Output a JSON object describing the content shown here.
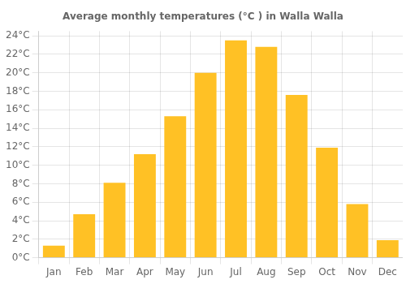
{
  "chart_data": {
    "type": "bar",
    "title": "Average monthly temperatures (°C ) in Walla Walla",
    "categories": [
      "Jan",
      "Feb",
      "Mar",
      "Apr",
      "May",
      "Jun",
      "Jul",
      "Aug",
      "Sep",
      "Oct",
      "Nov",
      "Dec"
    ],
    "values": [
      1.3,
      4.7,
      8.1,
      11.2,
      15.3,
      20.0,
      23.5,
      22.8,
      17.6,
      11.9,
      5.8,
      1.9
    ],
    "color": "#FFC125",
    "ylim": [
      0,
      24.5
    ],
    "yticks": [
      {
        "value": 0,
        "label": "0°C"
      },
      {
        "value": 2,
        "label": "2°C"
      },
      {
        "value": 4,
        "label": "4°C"
      },
      {
        "value": 6,
        "label": "6°C"
      },
      {
        "value": 8,
        "label": "8°C"
      },
      {
        "value": 10,
        "label": "10°C"
      },
      {
        "value": 12,
        "label": "12°C"
      },
      {
        "value": 14,
        "label": "14°C"
      },
      {
        "value": 16,
        "label": "16°C"
      },
      {
        "value": 18,
        "label": "18°C"
      },
      {
        "value": 20,
        "label": "20°C"
      },
      {
        "value": 22,
        "label": "22°C"
      },
      {
        "value": 24,
        "label": "24°C"
      }
    ],
    "grid": true
  }
}
